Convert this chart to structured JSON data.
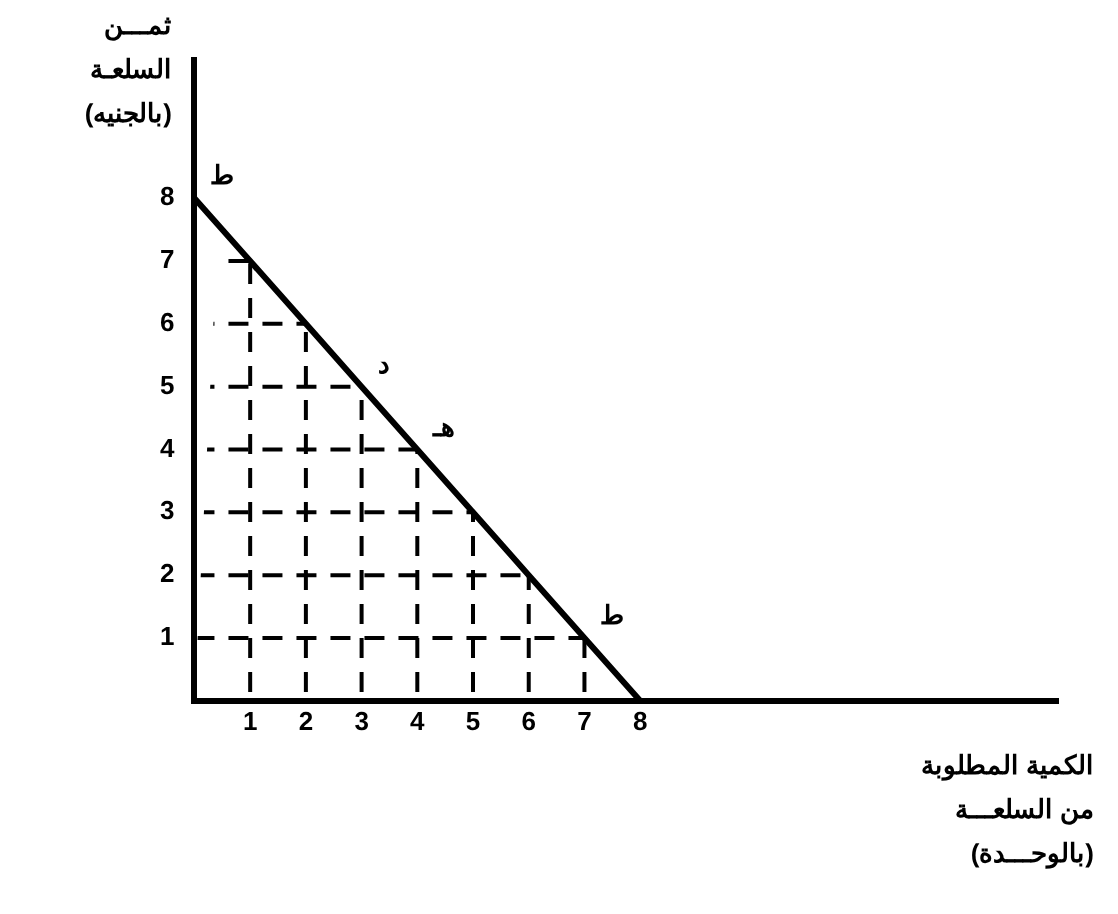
{
  "chart_data": {
    "type": "line",
    "xlabel": "الكمية المطلوبة\nمن السلعـــة\n(بالوحـــدة)",
    "ylabel": "ثمـــن\nالسلعـة\n(بالجنيه)",
    "x": [
      0,
      1,
      2,
      3,
      4,
      5,
      6,
      7,
      8
    ],
    "series": [
      {
        "color": "#000000",
        "values": [
          8,
          7,
          6,
          5,
          4,
          3,
          2,
          1,
          0
        ]
      }
    ],
    "xlim": [
      0,
      15.5
    ],
    "ylim": [
      0,
      10.2
    ],
    "xticks": [
      1,
      2,
      3,
      4,
      5,
      6,
      7,
      8
    ],
    "yticks": [
      1,
      2,
      3,
      4,
      5,
      6,
      7,
      8
    ],
    "grid": true,
    "line_style": "solid",
    "marker": "none",
    "legend": false,
    "annotations": [
      {
        "text": "ط",
        "x": 0,
        "y": 8
      },
      {
        "text": "د",
        "x": 3,
        "y": 5
      },
      {
        "text": "هـ",
        "x": 4,
        "y": 4
      },
      {
        "text": "ط",
        "x": 7,
        "y": 1
      }
    ]
  }
}
